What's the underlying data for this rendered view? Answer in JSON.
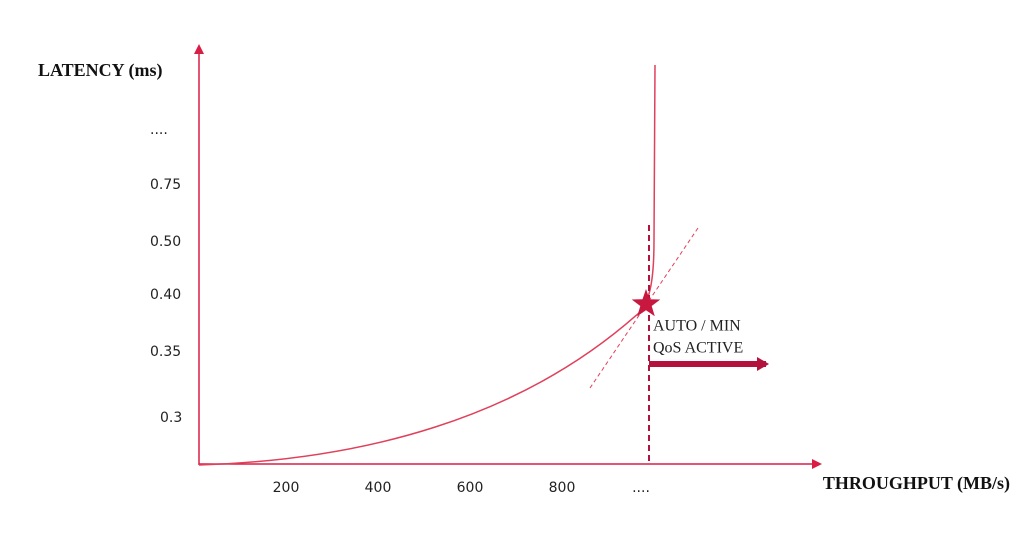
{
  "axes": {
    "y_label": "LATENCY (ms)",
    "x_label": "THROUGHPUT (MB/s)",
    "y_ticks": [
      "....",
      "0.75",
      "0.50",
      "0.40",
      "0.35",
      "0.3"
    ],
    "x_ticks": [
      "200",
      "400",
      "600",
      "800",
      "...."
    ]
  },
  "annotation": {
    "lines": [
      "AUTO / MIN",
      "QoS ACTIVE"
    ]
  }
}
